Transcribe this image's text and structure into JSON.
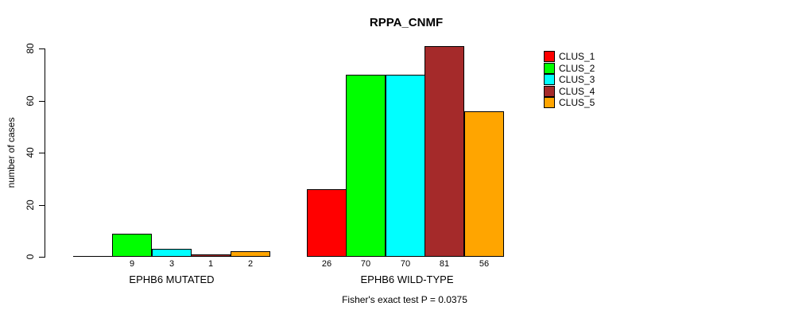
{
  "title": "RPPA_CNMF",
  "chart_data": {
    "type": "bar",
    "title": "RPPA_CNMF",
    "ylabel": "number of cases",
    "xlabel": "",
    "ylim": [
      0,
      80
    ],
    "yticks": [
      0,
      20,
      40,
      60,
      80
    ],
    "grid": false,
    "legend_position": "right-outside",
    "legend": [
      {
        "name": "CLUS_1",
        "color": "#FF0000"
      },
      {
        "name": "CLUS_2",
        "color": "#00FF00"
      },
      {
        "name": "CLUS_3",
        "color": "#00FFFF"
      },
      {
        "name": "CLUS_4",
        "color": "#A52A2A"
      },
      {
        "name": "CLUS_5",
        "color": "#FFA500"
      }
    ],
    "groups": [
      {
        "label": "EPHB6 MUTATED",
        "values": [
          0,
          9,
          3,
          1,
          2
        ],
        "bar_labels": [
          "",
          "9",
          "3",
          "1",
          "2"
        ]
      },
      {
        "label": "EPHB6 WILD-TYPE",
        "values": [
          26,
          70,
          70,
          81,
          56
        ],
        "bar_labels": [
          "26",
          "70",
          "70",
          "81",
          "56"
        ]
      }
    ],
    "annotation": "Fisher's exact test P = 0.0375"
  }
}
